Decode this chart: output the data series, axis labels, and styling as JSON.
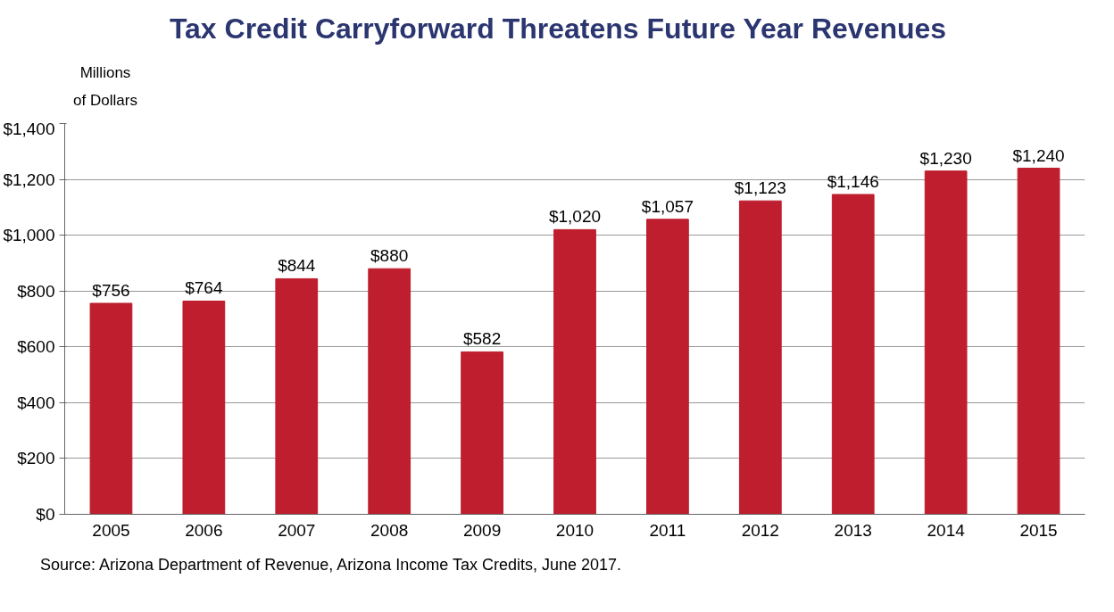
{
  "chart_data": {
    "type": "bar",
    "title": "Tax Credit Carryforward Threatens Future Year Revenues",
    "ylabel": "Millions of Dollars",
    "categories": [
      "2005",
      "2006",
      "2007",
      "2008",
      "2009",
      "2010",
      "2011",
      "2012",
      "2013",
      "2014",
      "2015"
    ],
    "values": [
      756,
      764,
      844,
      880,
      582,
      1020,
      1057,
      1123,
      1146,
      1230,
      1240
    ],
    "value_labels": [
      "$756",
      "$764",
      "$844",
      "$880",
      "$582",
      "$1,020",
      "$1,057",
      "$1,123",
      "$1,146",
      "$1,230",
      "$1,240"
    ],
    "color": "#be1e2d",
    "ylim": [
      0,
      1400
    ],
    "yticks": [
      {
        "value": 0,
        "label": "$0"
      },
      {
        "value": 200,
        "label": "$200"
      },
      {
        "value": 400,
        "label": "$400"
      },
      {
        "value": 600,
        "label": "$600"
      },
      {
        "value": 800,
        "label": "$800"
      },
      {
        "value": 1000,
        "label": "$1,000"
      },
      {
        "value": 1200,
        "label": "$1,200"
      },
      {
        "value": 1400,
        "label": "$1,400"
      }
    ],
    "grid": "y",
    "annotations": [
      "Source: Arizona Department of Revenue, Arizona Income Tax Credits, June 2017."
    ]
  }
}
